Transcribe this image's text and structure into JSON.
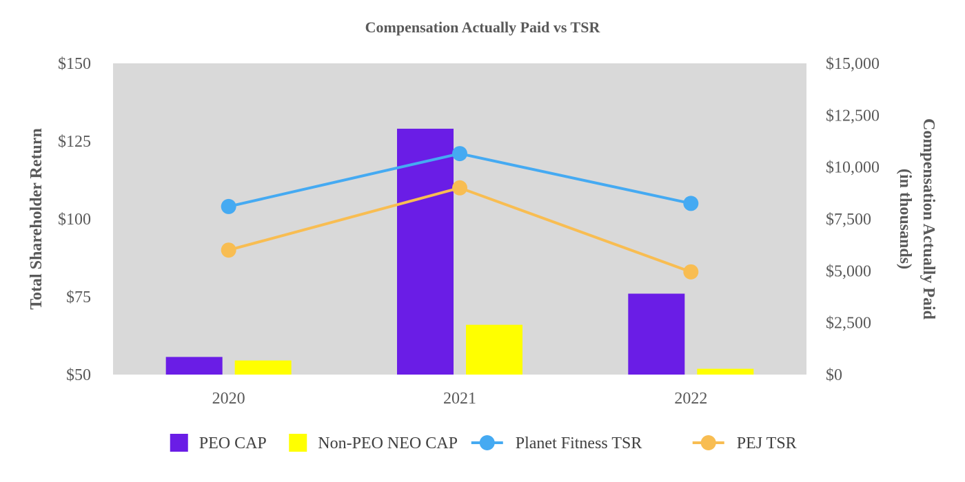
{
  "chart_data": {
    "type": "bar",
    "title": "Compensation Actually Paid vs TSR",
    "categories": [
      "2020",
      "2021",
      "2022"
    ],
    "y_left": {
      "label": "Total Shareholder Return",
      "ylim": [
        50,
        150
      ],
      "ticks": [
        50,
        75,
        100,
        125,
        150
      ],
      "tick_labels": [
        "$50",
        "$75",
        "$100",
        "$125",
        "$150"
      ]
    },
    "y_right": {
      "label_line1": "Compensation Actually Paid",
      "label_line2": "(in thousands)",
      "ylim": [
        0,
        15000
      ],
      "ticks": [
        0,
        2500,
        5000,
        7500,
        10000,
        12500,
        15000
      ],
      "tick_labels": [
        "$0",
        "$2,500",
        "$5,000",
        "$7,500",
        "$10,000",
        "$12,500",
        "$15,000"
      ]
    },
    "series": [
      {
        "name": "PEO CAP",
        "kind": "bar",
        "axis": "right",
        "color": "#6a1de6",
        "values": [
          850,
          11850,
          3900
        ]
      },
      {
        "name": "Non-PEO NEO CAP",
        "kind": "bar",
        "axis": "right",
        "color": "#ffff00",
        "values": [
          680,
          2400,
          280
        ]
      },
      {
        "name": "Planet Fitness TSR",
        "kind": "line",
        "axis": "left",
        "color": "#45aaf2",
        "values": [
          104,
          121,
          105
        ]
      },
      {
        "name": "PEJ TSR",
        "kind": "line",
        "axis": "left",
        "color": "#f8bd52",
        "values": [
          90,
          110,
          83
        ]
      }
    ],
    "plot_background": "#d9d9d9",
    "legend_position": "bottom"
  }
}
